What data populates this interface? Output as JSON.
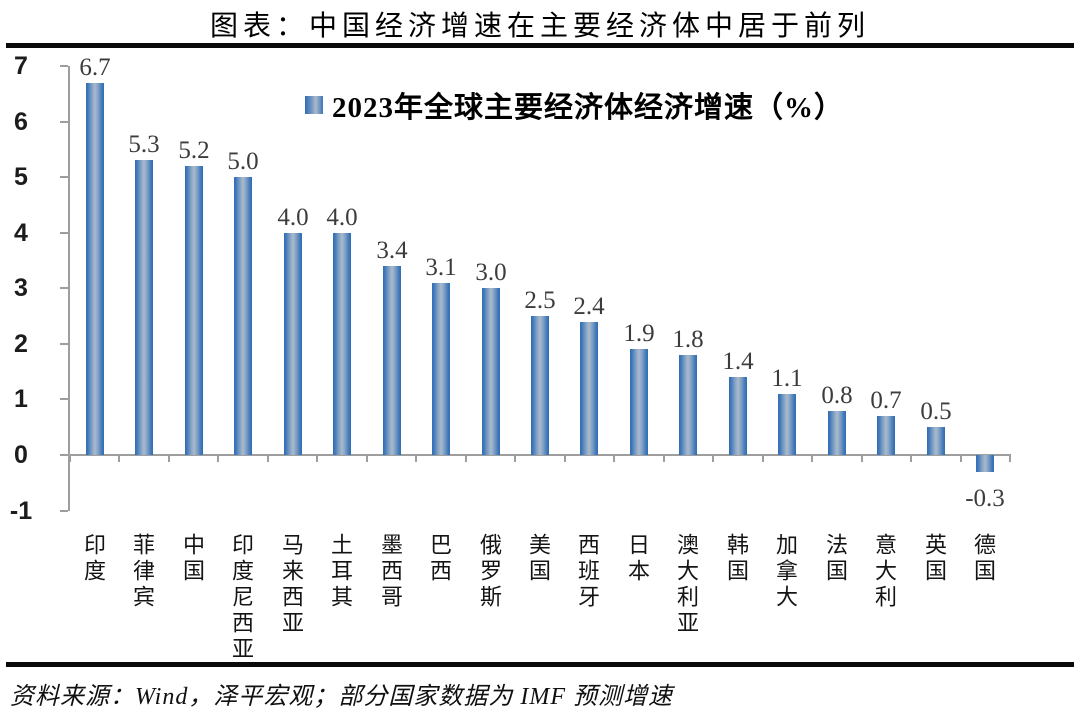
{
  "header": {
    "title": "图表：中国经济增速在主要经济体中居于前列"
  },
  "chart_data": {
    "type": "bar",
    "title": "图表：中国经济增速在主要经济体中居于前列",
    "legend": "2023年全球主要经济体经济增速（%）",
    "legend_position": "top-center",
    "categories": [
      "印度",
      "菲律宾",
      "中国",
      "印度尼西亚",
      "马来西亚",
      "土耳其",
      "墨西哥",
      "巴西",
      "俄罗斯",
      "美国",
      "西班牙",
      "日本",
      "澳大利亚",
      "韩国",
      "加拿大",
      "法国",
      "意大利",
      "英国",
      "德国"
    ],
    "values": [
      6.7,
      5.3,
      5.2,
      5.0,
      4.0,
      4.0,
      3.4,
      3.1,
      3.0,
      2.5,
      2.4,
      1.9,
      1.8,
      1.4,
      1.1,
      0.8,
      0.7,
      0.5,
      -0.3
    ],
    "value_labels": [
      "6.7",
      "5.3",
      "5.2",
      "5.0",
      "4.0",
      "4.0",
      "3.4",
      "3.1",
      "3.0",
      "2.5",
      "2.4",
      "1.9",
      "1.8",
      "1.4",
      "1.1",
      "0.8",
      "0.7",
      "0.5",
      "-0.3"
    ],
    "yticks": [
      7,
      6,
      5,
      4,
      3,
      2,
      1,
      0,
      -1
    ],
    "ylim": [
      -1,
      7
    ],
    "grid": false,
    "xlabel": "",
    "ylabel": "",
    "bar_edge_color": "#2f6db4",
    "bar_center_color": "#abbacb",
    "axis_color": "#9e9e9e"
  },
  "footer": {
    "source": "资料来源：Wind，泽平宏观；部分国家数据为 IMF 预测增速"
  }
}
